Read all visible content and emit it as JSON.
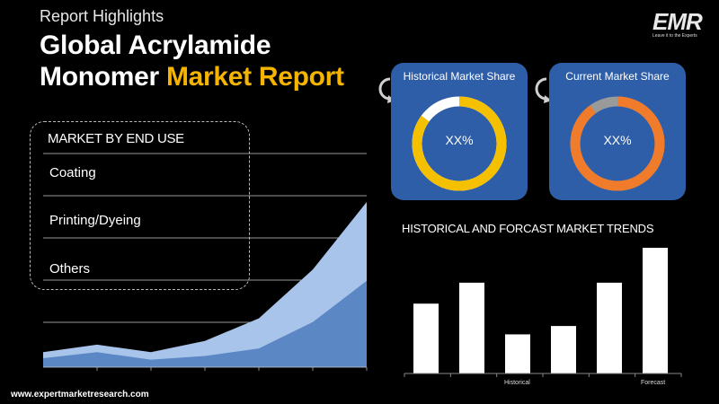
{
  "header": {
    "kicker": "Report Highlights",
    "title_line1": "Global Acrylamide",
    "title_line2_white": "Monomer ",
    "title_line2_accent": "Market Report"
  },
  "logo": {
    "text": "EMR",
    "tagline": "Leave it to the Experts"
  },
  "segment": {
    "title": "MARKET BY END USE",
    "items": [
      "Coating",
      "Printing/Dyeing",
      "Others"
    ]
  },
  "cards": {
    "historical": {
      "title": "Historical Market Share",
      "value": "XX%",
      "fill": 0.85,
      "color": "#f5c000",
      "track": "#ffffff"
    },
    "current": {
      "title": "Current Market Share",
      "value": "XX%",
      "fill": 0.9,
      "color": "#f07b2a",
      "track": "#9a9a9a"
    }
  },
  "chart_data": [
    {
      "type": "area",
      "series": [
        {
          "values": [
            2,
            3,
            2,
            3.5,
            6.5,
            13,
            22
          ]
        },
        {
          "values": [
            1.2,
            2,
            1,
            1.5,
            2.5,
            6,
            11.5
          ]
        }
      ],
      "colors": [
        "#a8c4ea",
        "#5b87c5"
      ]
    },
    {
      "type": "bar",
      "title": "HISTORICAL AND FORCAST MARKET TRENDS",
      "values": [
        5,
        6.5,
        2.8,
        3.4,
        6.5,
        9
      ],
      "x_tick_labels": [
        "Historical",
        "Forecast"
      ],
      "bar_color": "#ffffff"
    }
  ],
  "footer": {
    "website": "www.expertmarketresearch.com"
  },
  "colors": {
    "accent": "#f4b400",
    "card": "#2f5ea8"
  }
}
